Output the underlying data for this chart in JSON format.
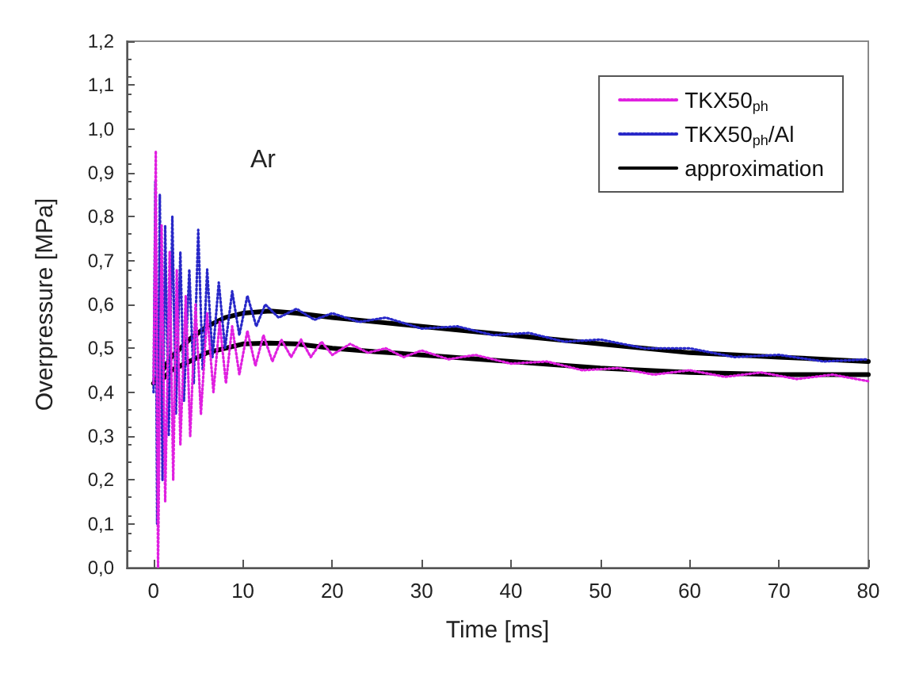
{
  "chart_data": {
    "type": "line",
    "xlabel": "Time [ms]",
    "ylabel": "Overpressure [MPa]",
    "annotations": [
      "Ar"
    ],
    "xlim": [
      -3,
      80
    ],
    "xticks": [
      0,
      10,
      20,
      30,
      40,
      50,
      60,
      70,
      80
    ],
    "ylim": [
      0,
      1.2
    ],
    "yticks": [
      {
        "value": 0,
        "label": "0,0"
      },
      {
        "value": 0.1,
        "label": "0,1"
      },
      {
        "value": 0.2,
        "label": "0,2"
      },
      {
        "value": 0.3,
        "label": "0,3"
      },
      {
        "value": 0.4,
        "label": "0,4"
      },
      {
        "value": 0.5,
        "label": "0,5"
      },
      {
        "value": 0.6,
        "label": "0,6"
      },
      {
        "value": 0.7,
        "label": "0,7"
      },
      {
        "value": 0.8,
        "label": "0,8"
      },
      {
        "value": 0.9,
        "label": "0,9"
      },
      {
        "value": 1.0,
        "label": "1,0"
      },
      {
        "value": 1.1,
        "label": "1,1"
      },
      {
        "value": 1.2,
        "label": "1,2"
      }
    ],
    "grid": false,
    "legend": "top right",
    "marker": "none",
    "series": [
      {
        "name": "TKX50$_{ph}$",
        "color": "#e020e0",
        "line_style": "dotted",
        "x": [
          0,
          0.25,
          0.5,
          0.9,
          1.3,
          1.8,
          2.2,
          2.6,
          3.0,
          3.6,
          4.1,
          4.7,
          5.3,
          6,
          6.7,
          7.4,
          8.1,
          8.8,
          9.6,
          10.5,
          11.4,
          12.3,
          13.3,
          14.3,
          15.4,
          16.5,
          17.6,
          18.8,
          20,
          22,
          24,
          26,
          28,
          30,
          33,
          36,
          40,
          44,
          48,
          52,
          56,
          60,
          64,
          68,
          72,
          76,
          80
        ],
        "values": [
          0.42,
          0.95,
          0.0,
          0.78,
          0.15,
          0.72,
          0.2,
          0.68,
          0.28,
          0.62,
          0.3,
          0.6,
          0.35,
          0.58,
          0.4,
          0.56,
          0.42,
          0.55,
          0.44,
          0.54,
          0.46,
          0.53,
          0.47,
          0.52,
          0.48,
          0.52,
          0.48,
          0.515,
          0.485,
          0.51,
          0.49,
          0.5,
          0.48,
          0.495,
          0.475,
          0.485,
          0.465,
          0.47,
          0.45,
          0.455,
          0.44,
          0.45,
          0.435,
          0.445,
          0.43,
          0.44,
          0.425
        ]
      },
      {
        "name": "TKX50$_{ph}$/Al",
        "color": "#2828c8",
        "line_style": "dotted",
        "x": [
          0,
          0.2,
          0.4,
          0.7,
          1.0,
          1.3,
          1.7,
          2.1,
          2.5,
          3.0,
          3.4,
          4.0,
          4.5,
          5.0,
          5.5,
          6.0,
          6.6,
          7.3,
          8.0,
          8.8,
          9.6,
          10.5,
          11.5,
          12.5,
          14,
          16,
          18,
          20,
          23,
          26,
          30,
          34,
          38,
          42,
          46,
          50,
          55,
          60,
          65,
          70,
          75,
          80
        ],
        "values": [
          0.4,
          0.88,
          0.1,
          0.85,
          0.2,
          0.78,
          0.3,
          0.8,
          0.35,
          0.72,
          0.38,
          0.68,
          0.42,
          0.77,
          0.45,
          0.68,
          0.48,
          0.65,
          0.5,
          0.63,
          0.53,
          0.62,
          0.55,
          0.6,
          0.57,
          0.59,
          0.565,
          0.58,
          0.56,
          0.57,
          0.545,
          0.55,
          0.53,
          0.535,
          0.515,
          0.52,
          0.5,
          0.5,
          0.48,
          0.485,
          0.47,
          0.475
        ]
      },
      {
        "name": "approximation",
        "color": "#000000",
        "line_style": "solid",
        "x": [
          0,
          1,
          2,
          3,
          4,
          6,
          8,
          10,
          13,
          16,
          20,
          25,
          30,
          40,
          50,
          60,
          70,
          80,
          null,
          0,
          1,
          2,
          3,
          4,
          6,
          8,
          10,
          13,
          16,
          20,
          25,
          30,
          40,
          50,
          60,
          70,
          80
        ],
        "values": [
          0.42,
          0.45,
          0.48,
          0.5,
          0.52,
          0.55,
          0.57,
          0.58,
          0.585,
          0.58,
          0.57,
          0.56,
          0.55,
          0.53,
          0.51,
          0.49,
          0.48,
          0.47,
          null,
          0.42,
          0.43,
          0.45,
          0.46,
          0.47,
          0.49,
          0.5,
          0.51,
          0.512,
          0.51,
          0.5,
          0.492,
          0.485,
          0.47,
          0.455,
          0.445,
          0.44,
          0.44
        ]
      }
    ]
  }
}
